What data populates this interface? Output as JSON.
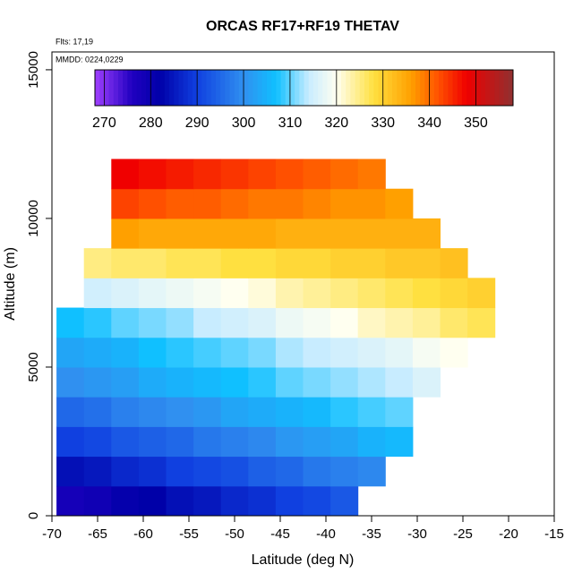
{
  "chart_data": {
    "type": "heatmap",
    "title": "ORCAS RF17+RF19 THETAV",
    "annotations": [
      "Flts: 17,19",
      "MMDD: 0224,0229"
    ],
    "x_label": "Latitude (deg N)",
    "y_label": "Altitude (m)",
    "xlim": [
      -70,
      -15
    ],
    "xticks": [
      -70,
      -65,
      -60,
      -55,
      -50,
      -45,
      -40,
      -35,
      -30,
      -25,
      -20,
      -15
    ],
    "ylim": [
      0,
      15600
    ],
    "yticks": [
      0,
      5000,
      10000,
      15000
    ],
    "x": [
      -68,
      -65,
      -62,
      -59,
      -56,
      -53,
      -50,
      -47,
      -44,
      -41,
      -38,
      -35,
      -32,
      -29,
      -26,
      -23,
      -20
    ],
    "y": [
      500,
      1500,
      2500,
      3500,
      4500,
      5500,
      6500,
      7500,
      8500,
      9500,
      10500,
      11500
    ],
    "z": [
      [
        278,
        279,
        281,
        282,
        284,
        285,
        287,
        288,
        290,
        291,
        293,
        null,
        null,
        null,
        null,
        null,
        null
      ],
      [
        284,
        285,
        287,
        288,
        290,
        291,
        292,
        294,
        295,
        297,
        298,
        299,
        null,
        null,
        null,
        null,
        null
      ],
      [
        290,
        291,
        293,
        294,
        295,
        297,
        298,
        299,
        301,
        302,
        303,
        305,
        306,
        null,
        null,
        null,
        null
      ],
      [
        295,
        296,
        298,
        299,
        300,
        301,
        303,
        304,
        305,
        306,
        308,
        309,
        310,
        null,
        null,
        null,
        null
      ],
      [
        300,
        301,
        302,
        304,
        305,
        306,
        307,
        308,
        310,
        311,
        312,
        313,
        314,
        316,
        null,
        null,
        null
      ],
      [
        303,
        304,
        305,
        307,
        308,
        309,
        310,
        311,
        313,
        314,
        315,
        316,
        317,
        319,
        320,
        null,
        null
      ],
      [
        307,
        308,
        310,
        311,
        312,
        314,
        315,
        316,
        318,
        319,
        320,
        322,
        323,
        324,
        326,
        327,
        null
      ],
      [
        null,
        315,
        316,
        317,
        318,
        319,
        320,
        321,
        323,
        324,
        325,
        326,
        327,
        328,
        329,
        330,
        null
      ],
      [
        null,
        325,
        326,
        326,
        327,
        327,
        328,
        328,
        329,
        329,
        330,
        330,
        331,
        331,
        332,
        null,
        null
      ],
      [
        null,
        null,
        336,
        335,
        335,
        335,
        335,
        335,
        334,
        334,
        334,
        334,
        334,
        334,
        null,
        null,
        null
      ],
      [
        null,
        null,
        343,
        342,
        341,
        341,
        340,
        339,
        339,
        338,
        337,
        337,
        336,
        null,
        null,
        null,
        null
      ],
      [
        null,
        null,
        348,
        347,
        346,
        345,
        344,
        343,
        342,
        341,
        340,
        339,
        null,
        null,
        null,
        null,
        null
      ]
    ],
    "clim": [
      268,
      358
    ],
    "cticks": [
      270,
      280,
      290,
      300,
      310,
      320,
      330,
      340,
      350
    ],
    "colorscale": [
      [
        268,
        "#a040ff"
      ],
      [
        276,
        "#2000c0"
      ],
      [
        282,
        "#0000a8"
      ],
      [
        290,
        "#1040e0"
      ],
      [
        300,
        "#3090f0"
      ],
      [
        307,
        "#10c0ff"
      ],
      [
        314,
        "#c8ecff"
      ],
      [
        320,
        "#fffff0"
      ],
      [
        328,
        "#ffe040"
      ],
      [
        336,
        "#ffa000"
      ],
      [
        342,
        "#ff5000"
      ],
      [
        348,
        "#f00000"
      ],
      [
        358,
        "#903030"
      ]
    ]
  }
}
